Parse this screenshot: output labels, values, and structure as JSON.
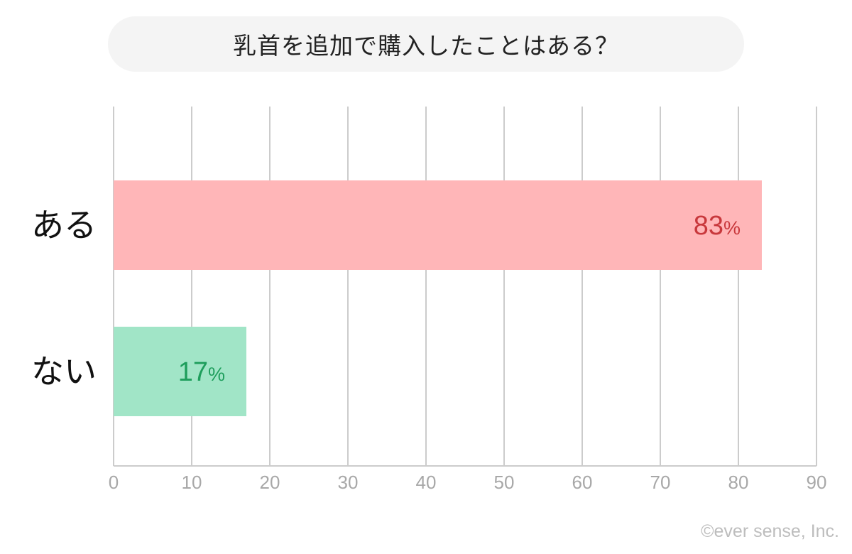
{
  "title": "乳首を追加で購入したことはある？",
  "copyright": "©ever sense, Inc.",
  "colors": {
    "background": "#ffffff",
    "title_bg": "#f4f4f4",
    "grid": "#cccccc",
    "tick_text": "#a8a8a8",
    "category_text": "#111111"
  },
  "chart_data": {
    "type": "bar",
    "orientation": "horizontal",
    "categories": [
      "ある",
      "ない"
    ],
    "values": [
      83,
      17
    ],
    "value_labels": [
      "83",
      "17"
    ],
    "value_unit": "%",
    "bar_colors": [
      "#ffb6b8",
      "#a1e5c7"
    ],
    "label_colors": [
      "#c8383c",
      "#1e9e5c"
    ],
    "xlim": [
      0,
      90
    ],
    "x_ticks": [
      "0",
      "10",
      "20",
      "30",
      "40",
      "50",
      "60",
      "70",
      "80",
      "90"
    ],
    "grid": true,
    "xlabel": "",
    "ylabel": ""
  }
}
